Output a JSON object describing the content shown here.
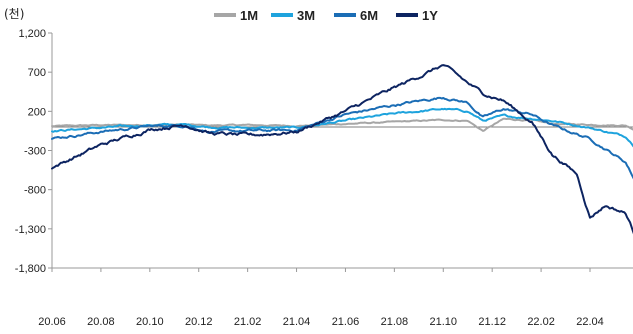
{
  "chart_data": {
    "type": "line",
    "unit_label": "(천)",
    "x_tick_labels": [
      "20.06",
      "20.08",
      "20.10",
      "20.12",
      "21.02",
      "21.04",
      "21.06",
      "21.08",
      "21.10",
      "21.12",
      "22.02",
      "22.04"
    ],
    "y_ticks": [
      1200,
      700,
      200,
      -300,
      -800,
      -1300,
      -1800
    ],
    "y_tick_labels": [
      "1,200",
      "700",
      "200",
      "-300",
      "-800",
      "-1,300",
      "-1,800"
    ],
    "ylim": [
      -1800,
      1200
    ],
    "legend_position": "top",
    "baseline": 0,
    "series": [
      {
        "name": "1M",
        "color": "#a6a6a6",
        "values": [
          {
            "x": "2020-06-01",
            "y": 10
          },
          {
            "x": "2020-08-01",
            "y": 25
          },
          {
            "x": "2020-10-01",
            "y": 25
          },
          {
            "x": "2020-11-15",
            "y": 30
          },
          {
            "x": "2020-12-15",
            "y": 20
          },
          {
            "x": "2021-02-01",
            "y": 25
          },
          {
            "x": "2021-04-01",
            "y": 15
          },
          {
            "x": "2021-06-01",
            "y": 40
          },
          {
            "x": "2021-08-01",
            "y": 65
          },
          {
            "x": "2021-10-01",
            "y": 90
          },
          {
            "x": "2021-11-01",
            "y": 80
          },
          {
            "x": "2021-11-20",
            "y": -50
          },
          {
            "x": "2021-12-15",
            "y": 100
          },
          {
            "x": "2022-01-20",
            "y": 85
          },
          {
            "x": "2022-02-15",
            "y": 40
          },
          {
            "x": "2022-04-01",
            "y": 30
          },
          {
            "x": "2022-05-15",
            "y": 20
          },
          {
            "x": "2022-06-01",
            "y": -60
          }
        ]
      },
      {
        "name": "3M",
        "color": "#1ea3dd",
        "values": [
          {
            "x": "2020-06-01",
            "y": -50
          },
          {
            "x": "2020-08-01",
            "y": -10
          },
          {
            "x": "2020-10-01",
            "y": 25
          },
          {
            "x": "2020-11-15",
            "y": 30
          },
          {
            "x": "2020-12-15",
            "y": 0
          },
          {
            "x": "2021-02-01",
            "y": -10
          },
          {
            "x": "2021-04-01",
            "y": -10
          },
          {
            "x": "2021-06-01",
            "y": 80
          },
          {
            "x": "2021-08-01",
            "y": 170
          },
          {
            "x": "2021-10-01",
            "y": 230
          },
          {
            "x": "2021-11-01",
            "y": 200
          },
          {
            "x": "2021-11-20",
            "y": 80
          },
          {
            "x": "2021-12-15",
            "y": 140
          },
          {
            "x": "2022-01-20",
            "y": 110
          },
          {
            "x": "2022-02-15",
            "y": 80
          },
          {
            "x": "2022-04-01",
            "y": -10
          },
          {
            "x": "2022-05-15",
            "y": -120
          },
          {
            "x": "2022-06-01",
            "y": -300
          }
        ]
      },
      {
        "name": "6M",
        "color": "#1b6db5",
        "values": [
          {
            "x": "2020-06-01",
            "y": -150
          },
          {
            "x": "2020-08-01",
            "y": -60
          },
          {
            "x": "2020-10-01",
            "y": 10
          },
          {
            "x": "2020-11-15",
            "y": 20
          },
          {
            "x": "2020-12-15",
            "y": -60
          },
          {
            "x": "2021-02-01",
            "y": -50
          },
          {
            "x": "2021-04-01",
            "y": -40
          },
          {
            "x": "2021-06-01",
            "y": 160
          },
          {
            "x": "2021-08-01",
            "y": 280
          },
          {
            "x": "2021-10-01",
            "y": 380
          },
          {
            "x": "2021-11-01",
            "y": 310
          },
          {
            "x": "2021-11-20",
            "y": 120
          },
          {
            "x": "2021-12-15",
            "y": 230
          },
          {
            "x": "2022-01-20",
            "y": 160
          },
          {
            "x": "2022-02-15",
            "y": 20
          },
          {
            "x": "2022-04-01",
            "y": -150
          },
          {
            "x": "2022-05-15",
            "y": -450
          },
          {
            "x": "2022-06-01",
            "y": -780
          }
        ]
      },
      {
        "name": "1Y",
        "color": "#0d2461",
        "values": [
          {
            "x": "2020-06-01",
            "y": -520
          },
          {
            "x": "2020-08-01",
            "y": -230
          },
          {
            "x": "2020-10-01",
            "y": -30
          },
          {
            "x": "2020-11-15",
            "y": 30
          },
          {
            "x": "2020-12-15",
            "y": -80
          },
          {
            "x": "2021-02-01",
            "y": -110
          },
          {
            "x": "2021-04-01",
            "y": -60
          },
          {
            "x": "2021-06-01",
            "y": 200
          },
          {
            "x": "2021-08-01",
            "y": 500
          },
          {
            "x": "2021-10-01",
            "y": 790
          },
          {
            "x": "2021-11-01",
            "y": 560
          },
          {
            "x": "2021-11-20",
            "y": 430
          },
          {
            "x": "2021-12-15",
            "y": 340
          },
          {
            "x": "2022-01-20",
            "y": 60
          },
          {
            "x": "2022-02-15",
            "y": -350
          },
          {
            "x": "2022-03-15",
            "y": -600
          },
          {
            "x": "2022-04-01",
            "y": -1150
          },
          {
            "x": "2022-04-20",
            "y": -1000
          },
          {
            "x": "2022-05-15",
            "y": -1100
          },
          {
            "x": "2022-06-01",
            "y": -1500
          }
        ]
      }
    ]
  }
}
